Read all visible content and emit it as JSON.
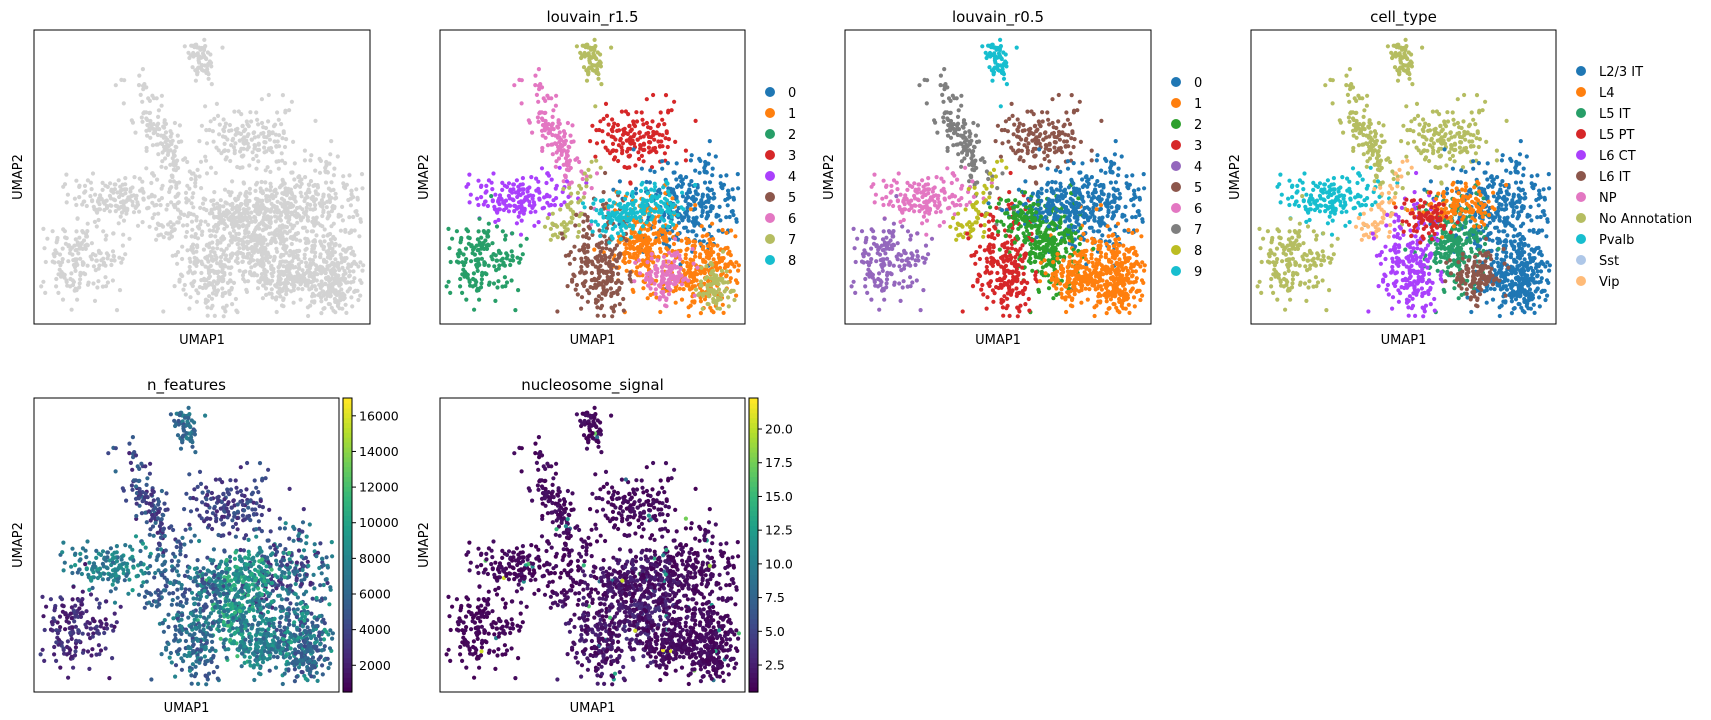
{
  "figure": {
    "panels": [
      {
        "title": "",
        "xlabel": "UMAP1",
        "ylabel": "UMAP2"
      },
      {
        "title": "louvain_r1.5",
        "xlabel": "UMAP1",
        "ylabel": "UMAP2"
      },
      {
        "title": "louvain_r0.5",
        "xlabel": "UMAP1",
        "ylabel": "UMAP2"
      },
      {
        "title": "cell_type",
        "xlabel": "UMAP1",
        "ylabel": "UMAP2"
      },
      {
        "title": "n_features",
        "xlabel": "UMAP1",
        "ylabel": "UMAP2"
      },
      {
        "title": "nucleosome_signal",
        "xlabel": "UMAP1",
        "ylabel": "UMAP2"
      }
    ]
  },
  "chart_data": [
    {
      "type": "scatter",
      "title": "",
      "xlabel": "UMAP1",
      "ylabel": "UMAP2",
      "color_mode": "uniform",
      "point_color": "#d3d3d3",
      "grid": false,
      "legend": "none"
    },
    {
      "type": "scatter",
      "title": "louvain_r1.5",
      "xlabel": "UMAP1",
      "ylabel": "UMAP2",
      "color_mode": "categorical",
      "grid": false,
      "legend": "right",
      "legend_entries": [
        {
          "label": "0",
          "color": "#1f77b4"
        },
        {
          "label": "1",
          "color": "#ff7f0e"
        },
        {
          "label": "2",
          "color": "#279e68"
        },
        {
          "label": "3",
          "color": "#d62728"
        },
        {
          "label": "4",
          "color": "#aa40fc"
        },
        {
          "label": "5",
          "color": "#8c564b"
        },
        {
          "label": "6",
          "color": "#e377c2"
        },
        {
          "label": "7",
          "color": "#b5bd61"
        },
        {
          "label": "8",
          "color": "#17becf"
        }
      ]
    },
    {
      "type": "scatter",
      "title": "louvain_r0.5",
      "xlabel": "UMAP1",
      "ylabel": "UMAP2",
      "color_mode": "categorical",
      "grid": false,
      "legend": "right",
      "legend_entries": [
        {
          "label": "0",
          "color": "#1f77b4"
        },
        {
          "label": "1",
          "color": "#ff7f0e"
        },
        {
          "label": "2",
          "color": "#2ca02c"
        },
        {
          "label": "3",
          "color": "#d62728"
        },
        {
          "label": "4",
          "color": "#9467bd"
        },
        {
          "label": "5",
          "color": "#8c564b"
        },
        {
          "label": "6",
          "color": "#e377c2"
        },
        {
          "label": "7",
          "color": "#7f7f7f"
        },
        {
          "label": "8",
          "color": "#bcbd22"
        },
        {
          "label": "9",
          "color": "#17becf"
        }
      ]
    },
    {
      "type": "scatter",
      "title": "cell_type",
      "xlabel": "UMAP1",
      "ylabel": "UMAP2",
      "color_mode": "categorical",
      "grid": false,
      "legend": "right",
      "legend_entries": [
        {
          "label": "L2/3 IT",
          "color": "#1f77b4"
        },
        {
          "label": "L4",
          "color": "#ff7f0e"
        },
        {
          "label": "L5 IT",
          "color": "#279e68"
        },
        {
          "label": "L5 PT",
          "color": "#d62728"
        },
        {
          "label": "L6 CT",
          "color": "#aa40fc"
        },
        {
          "label": "L6 IT",
          "color": "#8c564b"
        },
        {
          "label": "NP",
          "color": "#e377c2"
        },
        {
          "label": "No Annotation",
          "color": "#b5bd61"
        },
        {
          "label": "Pvalb",
          "color": "#17becf"
        },
        {
          "label": "Sst",
          "color": "#aec7e8"
        },
        {
          "label": "Vip",
          "color": "#ffbb78"
        }
      ]
    },
    {
      "type": "scatter",
      "title": "n_features",
      "xlabel": "UMAP1",
      "ylabel": "UMAP2",
      "color_mode": "continuous",
      "colormap": "viridis",
      "grid": false,
      "colorbar": {
        "min": 500,
        "max": 17000,
        "ticks": [
          "2000",
          "4000",
          "6000",
          "8000",
          "10000",
          "12000",
          "14000",
          "16000"
        ]
      }
    },
    {
      "type": "scatter",
      "title": "nucleosome_signal",
      "xlabel": "UMAP1",
      "ylabel": "UMAP2",
      "color_mode": "continuous",
      "colormap": "viridis",
      "grid": false,
      "colorbar": {
        "min": 0.5,
        "max": 22.3,
        "ticks": [
          "2.5",
          "5.0",
          "7.5",
          "10.0",
          "12.5",
          "15.0",
          "17.5",
          "20.0"
        ]
      }
    }
  ]
}
